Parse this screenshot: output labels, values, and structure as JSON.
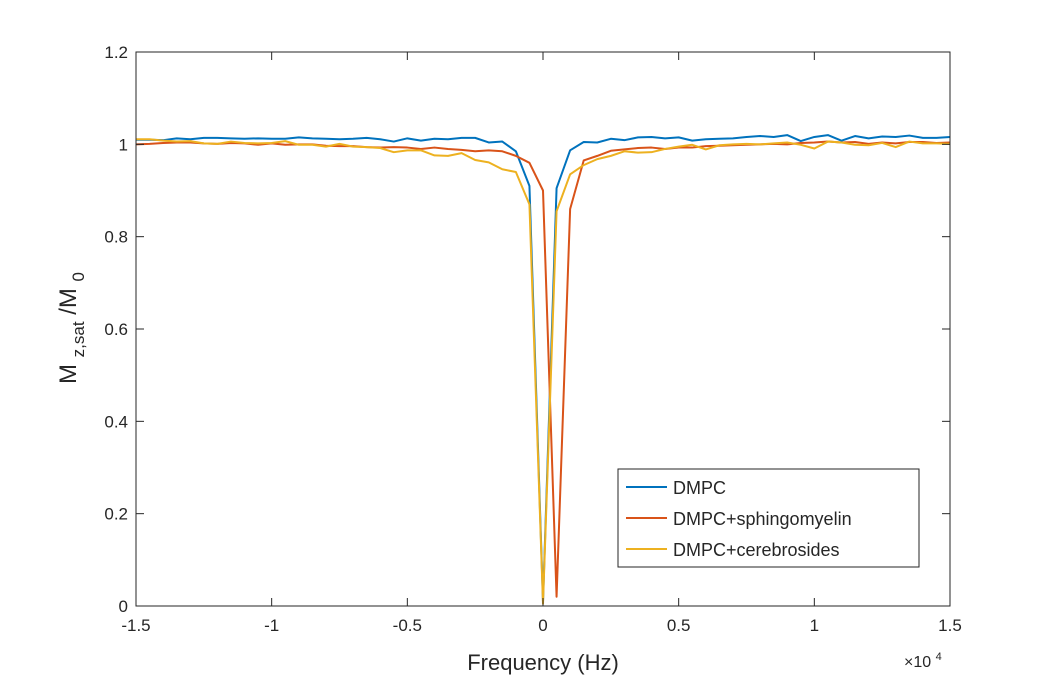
{
  "chart_data": {
    "type": "line",
    "xlabel": "Frequency (Hz)",
    "ylabel": {
      "main": "M",
      "sub1": "z,sat",
      "slash": "/M",
      "sub2": "0"
    },
    "x_exponent": {
      "prefix": "×10",
      "power": "4"
    },
    "xlim": [
      -15000,
      15000
    ],
    "ylim": [
      0,
      1.2
    ],
    "xticks": [
      -15000,
      -10000,
      -5000,
      0,
      5000,
      10000,
      15000
    ],
    "xtick_labels": [
      "-1.5",
      "-1",
      "-0.5",
      "0",
      "0.5",
      "1",
      "1.5"
    ],
    "yticks": [
      0,
      0.2,
      0.4,
      0.6,
      0.8,
      1,
      1.2
    ],
    "ytick_labels": [
      "0",
      "0.2",
      "0.4",
      "0.6",
      "0.8",
      "1",
      "1.2"
    ],
    "grid": false,
    "legend_position": "bottom-right",
    "x": [
      -15000,
      -14500,
      -14000,
      -13500,
      -13000,
      -12500,
      -12000,
      -11500,
      -11000,
      -10500,
      -10000,
      -9500,
      -9000,
      -8500,
      -8000,
      -7500,
      -7000,
      -6500,
      -6000,
      -5500,
      -5000,
      -4500,
      -4000,
      -3500,
      -3000,
      -2500,
      -2000,
      -1500,
      -1000,
      -500,
      0,
      500,
      1000,
      1500,
      2000,
      2500,
      3000,
      3500,
      4000,
      4500,
      5000,
      5500,
      6000,
      6500,
      7000,
      7500,
      8000,
      8500,
      9000,
      9500,
      10000,
      10500,
      11000,
      11500,
      12000,
      12500,
      13000,
      13500,
      14000,
      14500,
      15000
    ],
    "series": [
      {
        "name": "DMPC",
        "color": "#0072BD",
        "values": [
          1.01,
          1.01,
          1.009,
          1.013,
          1.011,
          1.014,
          1.014,
          1.013,
          1.012,
          1.013,
          1.012,
          1.012,
          1.015,
          1.013,
          1.012,
          1.011,
          1.012,
          1.014,
          1.011,
          1.006,
          1.013,
          1.008,
          1.012,
          1.011,
          1.014,
          1.014,
          1.004,
          1.006,
          0.985,
          0.91,
          0.01,
          0.905,
          0.987,
          1.005,
          1.004,
          1.012,
          1.009,
          1.015,
          1.016,
          1.013,
          1.015,
          1.008,
          1.011,
          1.012,
          1.013,
          1.016,
          1.018,
          1.016,
          1.02,
          1.007,
          1.016,
          1.02,
          1.008,
          1.018,
          1.013,
          1.017,
          1.016,
          1.019,
          1.014,
          1.014,
          1.016
        ]
      },
      {
        "name": "DMPC+sphingomyelin",
        "color": "#D95319",
        "values": [
          1.0,
          1.001,
          1.003,
          1.004,
          1.004,
          1.002,
          1.001,
          1.003,
          1.002,
          0.999,
          1.002,
          0.999,
          1.0,
          1.0,
          0.997,
          0.996,
          0.996,
          0.994,
          0.993,
          0.994,
          0.993,
          0.99,
          0.993,
          0.99,
          0.988,
          0.985,
          0.987,
          0.985,
          0.975,
          0.96,
          0.9,
          0.02,
          0.86,
          0.965,
          0.975,
          0.986,
          0.989,
          0.992,
          0.993,
          0.99,
          0.993,
          0.993,
          0.996,
          0.997,
          0.998,
          0.999,
          1.0,
          1.001,
          1.0,
          1.003,
          1.004,
          1.006,
          1.004,
          1.005,
          1.001,
          1.004,
          1.002,
          1.005,
          1.005,
          1.003,
          1.004
        ]
      },
      {
        "name": "DMPC+cerebrosides",
        "color": "#EDB120",
        "values": [
          1.011,
          1.011,
          1.008,
          1.006,
          1.007,
          1.002,
          1.001,
          1.006,
          1.003,
          1.002,
          1.003,
          1.007,
          0.999,
          0.999,
          0.995,
          1.001,
          0.995,
          0.994,
          0.992,
          0.983,
          0.987,
          0.987,
          0.976,
          0.975,
          0.981,
          0.966,
          0.961,
          0.946,
          0.94,
          0.87,
          0.005,
          0.855,
          0.935,
          0.955,
          0.968,
          0.975,
          0.985,
          0.982,
          0.983,
          0.99,
          0.995,
          0.999,
          0.989,
          0.998,
          1.0,
          1.001,
          1.0,
          1.002,
          1.004,
          0.999,
          0.991,
          1.006,
          1.004,
          0.999,
          0.998,
          1.003,
          0.994,
          1.006,
          1.002,
          1.002,
          1.001
        ]
      }
    ]
  }
}
